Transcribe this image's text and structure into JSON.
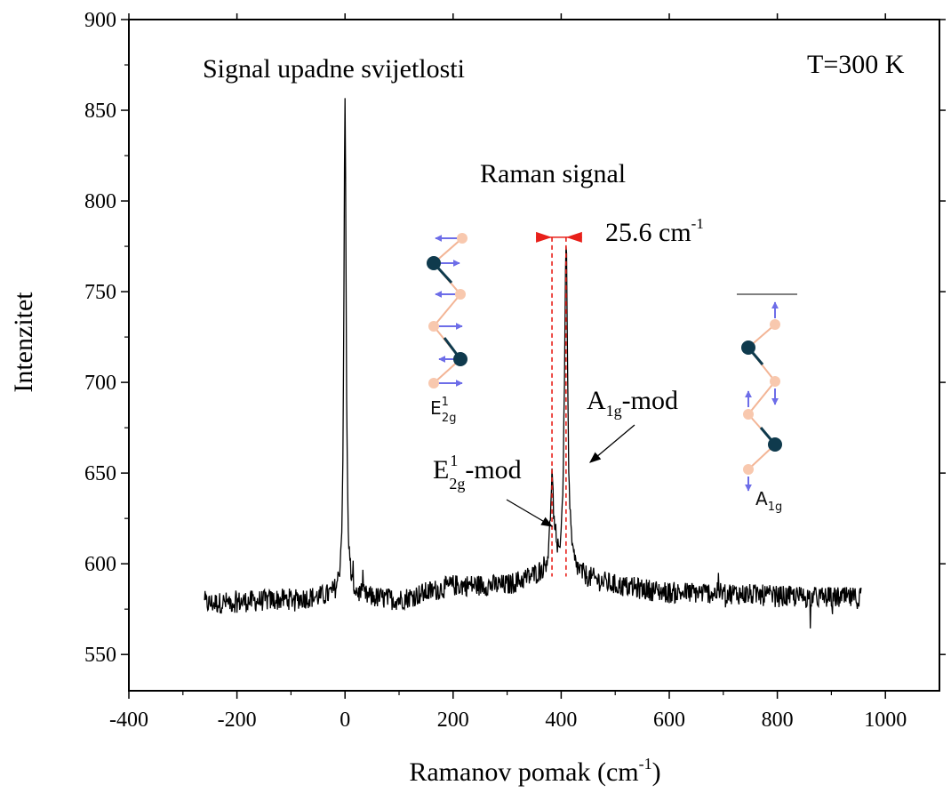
{
  "chart_data": {
    "type": "line",
    "xlabel": "Ramanov pomak (cm",
    "xlabel_sup": "-1",
    "xlabel_end": ")",
    "ylabel": "Intenzitet",
    "xlim": [
      -400,
      1100
    ],
    "ylim": [
      530,
      900
    ],
    "x_ticks": [
      -400,
      -200,
      0,
      200,
      400,
      600,
      800,
      1000
    ],
    "y_ticks": [
      550,
      600,
      650,
      700,
      750,
      800,
      850,
      900
    ],
    "grid": false,
    "series": [
      {
        "color": "#000000",
        "baseline": [
          [
            -260,
            578
          ],
          [
            0,
            582
          ],
          [
            100,
            580
          ],
          [
            200,
            588
          ],
          [
            300,
            588
          ],
          [
            370,
            595
          ],
          [
            430,
            593
          ],
          [
            500,
            588
          ],
          [
            600,
            584
          ],
          [
            700,
            584
          ],
          [
            800,
            582
          ],
          [
            955,
            581
          ]
        ],
        "peaks": [
          {
            "center": 0,
            "height": 856,
            "width": 2.5
          },
          {
            "center": 383,
            "height": 646,
            "width": 3.5
          },
          {
            "center": 409,
            "height": 779,
            "width": 3.5
          }
        ],
        "x_range": [
          -260,
          955
        ],
        "noise_amplitude": 6
      }
    ],
    "annotations": {
      "laser": "Signal upadne svijetlosti",
      "temperature": "T=300 K",
      "raman": "Raman signal",
      "separation_value": "25.6 cm",
      "separation_sup": "-1",
      "separation_from": 383,
      "separation_to": 409,
      "separation_y": 780,
      "e2g_label_main": "E",
      "e2g_label_sup": "1",
      "e2g_label_sub": "2g",
      "e2g_label_suffix": "-mod",
      "a1g_label_main": "A",
      "a1g_label_sub": "1g",
      "a1g_label_suffix": "-mod",
      "inset_e2g_main": "E",
      "inset_e2g_sup": "1",
      "inset_e2g_sub": "2g",
      "inset_a1g_main": "A",
      "inset_a1g_sub": "1g"
    },
    "colors": {
      "axis": "#000000",
      "line": "#000000",
      "marker_red": "#e8201a",
      "atom_dark": "#0f3a4d",
      "atom_light": "#f8c8ae",
      "bond_light": "#f3b596",
      "arrow_blue": "#6d6de8"
    }
  }
}
